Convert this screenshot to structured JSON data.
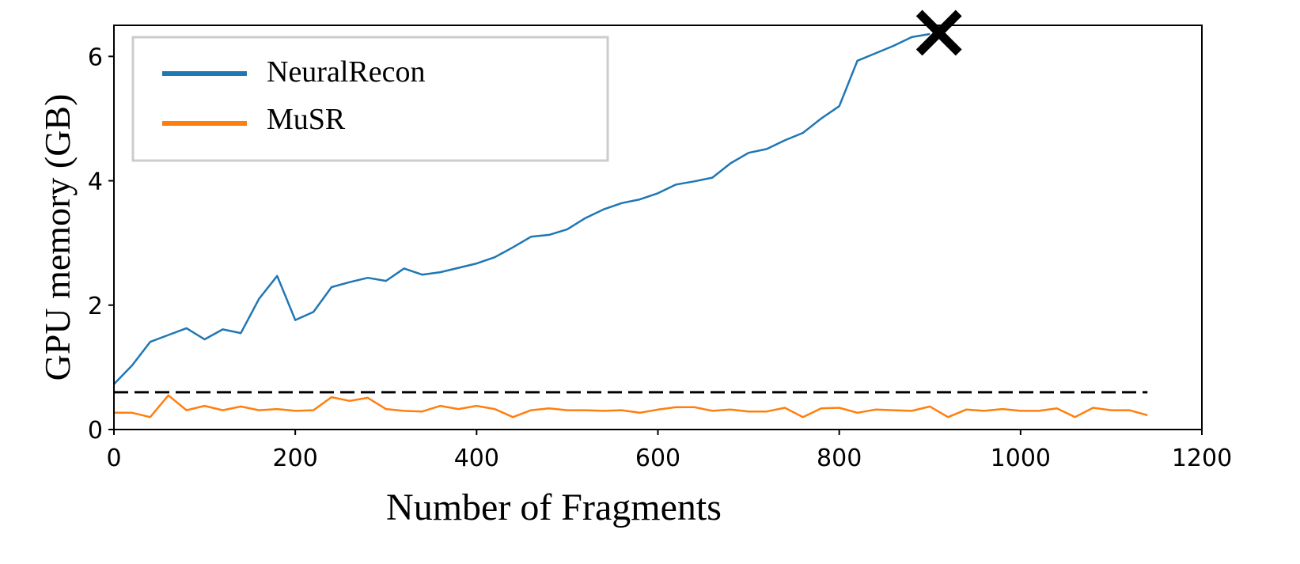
{
  "chart_data": {
    "type": "line",
    "xlabel": "Number of Fragments",
    "ylabel": "GPU memory (GB)",
    "xlim": [
      0,
      1200
    ],
    "ylim": [
      0,
      6.5
    ],
    "xticks": [
      0,
      200,
      400,
      600,
      800,
      1000,
      1200
    ],
    "yticks": [
      0,
      2,
      4,
      6
    ],
    "grid": false,
    "legend_position": "top-left",
    "series": [
      {
        "name": "NeuralRecon",
        "color": "#1f77b4",
        "x": [
          0,
          20,
          40,
          60,
          80,
          100,
          120,
          140,
          160,
          180,
          200,
          220,
          240,
          260,
          280,
          300,
          320,
          340,
          360,
          380,
          400,
          420,
          440,
          460,
          480,
          500,
          520,
          540,
          560,
          580,
          600,
          620,
          640,
          660,
          680,
          700,
          720,
          740,
          760,
          780,
          800,
          820,
          840,
          860,
          880,
          900
        ],
        "y": [
          0.73,
          1.03,
          1.41,
          1.52,
          1.63,
          1.45,
          1.61,
          1.55,
          2.1,
          2.47,
          1.76,
          1.89,
          2.29,
          2.37,
          2.44,
          2.39,
          2.59,
          2.49,
          2.53,
          2.6,
          2.67,
          2.77,
          2.93,
          3.1,
          3.13,
          3.22,
          3.4,
          3.54,
          3.64,
          3.7,
          3.8,
          3.94,
          3.99,
          4.05,
          4.28,
          4.45,
          4.51,
          4.65,
          4.77,
          5.0,
          5.2,
          5.93,
          6.05,
          6.17,
          6.31,
          6.36
        ]
      },
      {
        "name": "MuSR",
        "color": "#ff7f0e",
        "x": [
          0,
          20,
          40,
          60,
          80,
          100,
          120,
          140,
          160,
          180,
          200,
          220,
          240,
          260,
          280,
          300,
          320,
          340,
          360,
          380,
          400,
          420,
          440,
          460,
          480,
          500,
          520,
          540,
          560,
          580,
          600,
          620,
          640,
          660,
          680,
          700,
          720,
          740,
          760,
          780,
          800,
          820,
          840,
          860,
          880,
          900,
          920,
          940,
          960,
          980,
          1000,
          1020,
          1040,
          1060,
          1080,
          1100,
          1120,
          1140
        ],
        "y": [
          0.27,
          0.27,
          0.2,
          0.55,
          0.31,
          0.38,
          0.31,
          0.37,
          0.31,
          0.33,
          0.3,
          0.31,
          0.52,
          0.46,
          0.51,
          0.33,
          0.3,
          0.29,
          0.38,
          0.33,
          0.38,
          0.33,
          0.2,
          0.31,
          0.34,
          0.31,
          0.31,
          0.3,
          0.31,
          0.27,
          0.32,
          0.36,
          0.36,
          0.3,
          0.32,
          0.29,
          0.29,
          0.35,
          0.2,
          0.34,
          0.35,
          0.27,
          0.32,
          0.31,
          0.3,
          0.37,
          0.2,
          0.32,
          0.3,
          0.33,
          0.3,
          0.3,
          0.34,
          0.2,
          0.35,
          0.31,
          0.31,
          0.23
        ]
      }
    ],
    "reference_line": {
      "y": 0.6,
      "style": "dashed",
      "color": "#000000",
      "x_range": [
        0,
        1140
      ]
    },
    "marker": {
      "symbol": "x",
      "x": 910,
      "y": 6.38,
      "color": "#000000"
    }
  }
}
